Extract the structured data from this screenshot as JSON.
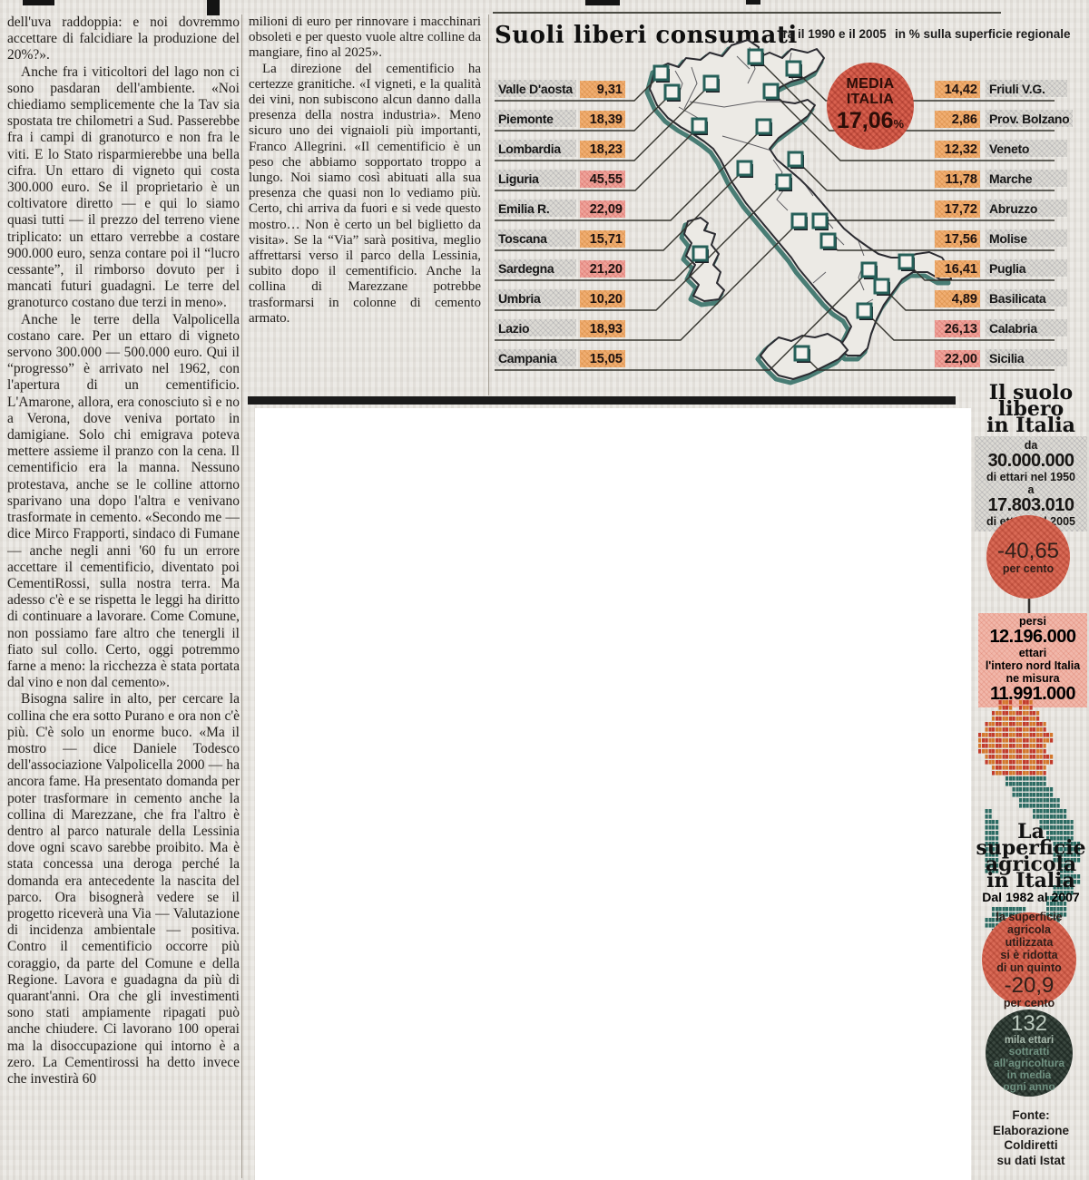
{
  "article": {
    "col1_paragraphs": [
      "dell'uva raddoppia: e noi dovremmo accettare di falcidiare la produzione del 20%?».",
      "Anche fra i viticoltori del lago non ci sono pasdaran dell'ambiente. «Noi chiediamo semplicemente che la Tav sia spostata tre chilometri a Sud. Passerebbe fra i campi di granoturco e non fra le viti. E lo Stato risparmierebbe una bella cifra. Un ettaro di vigneto qui costa 300.000 euro. Se il proprietario è un coltivatore diretto — e qui lo siamo quasi tutti — il prezzo del terreno viene triplicato: un ettaro verrebbe a costare 900.000 euro, senza contare poi il “lucro cessante”, il rimborso dovuto per i mancati futuri guadagni. Le terre del granoturco costano due terzi in meno».",
      "Anche le terre della Valpolicella costano care. Per un ettaro di vigneto servono 300.000 — 500.000 euro. Qui il “progresso” è arrivato nel 1962, con l'apertura di un cementificio. L'Amarone, allora, era conosciuto sì e no a Verona, dove veniva portato in damigiane. Solo chi emigrava poteva mettere assieme il pranzo con la cena. Il cementificio era la manna. Nessuno protestava, anche se le colline attorno sparivano una dopo l'altra e venivano trasformate in cemento. «Secondo me — dice Mirco Frapporti, sindaco di Fumane — anche negli anni '60 fu un errore accettare il cementificio, diventato poi CementiRossi, sulla nostra terra. Ma adesso c'è e se rispetta le leggi ha diritto di continuare a lavorare. Come Comune, non possiamo fare altro che tenergli il fiato sul collo. Certo, oggi potremmo farne a meno: la ricchezza è stata portata dal vino e non dal cemento».",
      "Bisogna salire in alto, per cercare la collina che era sotto Purano e ora non c'è più. C'è solo un enorme buco. «Ma il mostro — dice Daniele Todesco dell'associazione Valpolicella 2000 — ha ancora fame. Ha presentato domanda per poter trasformare in cemento anche la collina di Marezzane, che fra l'altro è dentro al parco naturale della Lessinia dove ogni scavo sarebbe proibito. Ma è stata concessa una deroga perché la domanda era antecedente la nascita del parco. Ora bisognerà vedere se il progetto riceverà una Via — Valutazione di incidenza ambientale — positiva. Contro il cementificio occorre più coraggio, da parte del Comune e della Regione. Lavora e guadagna da più di quarant'anni. Ora che gli investimenti sono stati ampiamente ripagati può anche chiudere. Ci lavorano 100 operai ma la disoccupazione qui intorno è a zero. La Cementirossi ha detto invece che investirà 60"
    ],
    "col2_paragraphs": [
      "milioni di euro per rinnovare i macchinari obsoleti e per questo vuole altre colline da mangiare, fino al 2025».",
      "La direzione del cementificio ha certezze granitiche. «I vigneti, e la qualità dei vini, non subiscono alcun danno dalla presenza della nostra industria». Meno sicuro uno dei vignaioli più importanti, Franco Allegrini. «Il cementificio è un peso che abbiamo sopportato troppo a lungo. Noi siamo così abituati alla sua presenza che quasi non lo vediamo più. Certo, chi arriva da fuori e si vede questo mostro… Non è certo un bel biglietto da visita». Se la “Via” sarà positiva, meglio affrettarsi verso il parco della Lessinia, subito dopo il cementificio. Anche la collina di Marezzane potrebbe trasformarsi in colonne di cemento armato."
    ]
  },
  "infographic": {
    "title": "Suoli liberi consumati",
    "period": "fra il 1990 e il 2005",
    "unit": "in % sulla superficie regionale",
    "media": {
      "label_line1": "MEDIA",
      "label_line2": "ITALIA",
      "value": "17,06",
      "percent_sign": "%"
    },
    "regions_left": [
      {
        "name": "Valle D'aosta",
        "value": "9,31",
        "highlight": false
      },
      {
        "name": "Piemonte",
        "value": "18,39",
        "highlight": false
      },
      {
        "name": "Lombardia",
        "value": "18,23",
        "highlight": false
      },
      {
        "name": "Liguria",
        "value": "45,55",
        "highlight": true
      },
      {
        "name": "Emilia R.",
        "value": "22,09",
        "highlight": true
      },
      {
        "name": "Toscana",
        "value": "15,71",
        "highlight": false
      },
      {
        "name": "Sardegna",
        "value": "21,20",
        "highlight": true
      },
      {
        "name": "Umbria",
        "value": "10,20",
        "highlight": false
      },
      {
        "name": "Lazio",
        "value": "18,93",
        "highlight": false
      },
      {
        "name": "Campania",
        "value": "15,05",
        "highlight": false
      }
    ],
    "regions_right": [
      {
        "name": "Friuli V.G.",
        "value": "14,42",
        "highlight": false
      },
      {
        "name": "Prov. Bolzano",
        "value": "2,86",
        "highlight": false
      },
      {
        "name": "Veneto",
        "value": "12,32",
        "highlight": false
      },
      {
        "name": "Marche",
        "value": "11,78",
        "highlight": false
      },
      {
        "name": "Abruzzo",
        "value": "17,72",
        "highlight": false
      },
      {
        "name": "Molise",
        "value": "17,56",
        "highlight": false
      },
      {
        "name": "Puglia",
        "value": "16,41",
        "highlight": false
      },
      {
        "name": "Basilicata",
        "value": "4,89",
        "highlight": false
      },
      {
        "name": "Calabria",
        "value": "26,13",
        "highlight": true
      },
      {
        "name": "Sicilia",
        "value": "22,00",
        "highlight": true
      }
    ]
  },
  "sidebar": {
    "block1": {
      "title_lines": [
        "Il suolo",
        "libero",
        "in Italia"
      ],
      "from_label": "da",
      "from_value": "30.000.000",
      "from_caption": "di ettari nel 1950",
      "to_label": "a",
      "to_value": "17.803.010",
      "to_caption": "di ettari nel 2005",
      "circle_value": "-40,65",
      "circle_caption": "per cento",
      "lost_label": "persi",
      "lost_value": "12.196.000",
      "lost_unit": "ettari",
      "north_caption_line1": "l'intero nord Italia",
      "north_caption_line2": "ne misura",
      "north_value": "11.991.000"
    },
    "block2": {
      "title_lines": [
        "La",
        "superficie",
        "agricola",
        "in Italia"
      ],
      "subtitle": "Dal 1982 al 2007",
      "circle_caption_lines": [
        "la superficie",
        "agricola utilizzata",
        "si è ridotta",
        "di un quinto"
      ],
      "circle_value": "-20,9",
      "circle_unit": "per cento",
      "dark_circle_value": "132",
      "dark_circle_unit": "mila ettari",
      "dark_circle_caption_lines": [
        "sottratti",
        "all'agricoltura",
        "in media",
        "ogni anno"
      ]
    },
    "source_lines": [
      "Fonte:",
      "Elaborazione",
      "Coldiretti",
      "su dati Istat"
    ]
  },
  "colors": {
    "paper": "#e8e5e0",
    "value_chip_orange": "#f0ae72",
    "value_chip_pink": "#efa39b",
    "media_circle_red": "#d8614f",
    "map_outline": "#2b2b31",
    "map_shadow_teal": "#2d6b62",
    "sidebar_pink": "#f1b7aa",
    "dark_circle_green": "#3a473f"
  }
}
